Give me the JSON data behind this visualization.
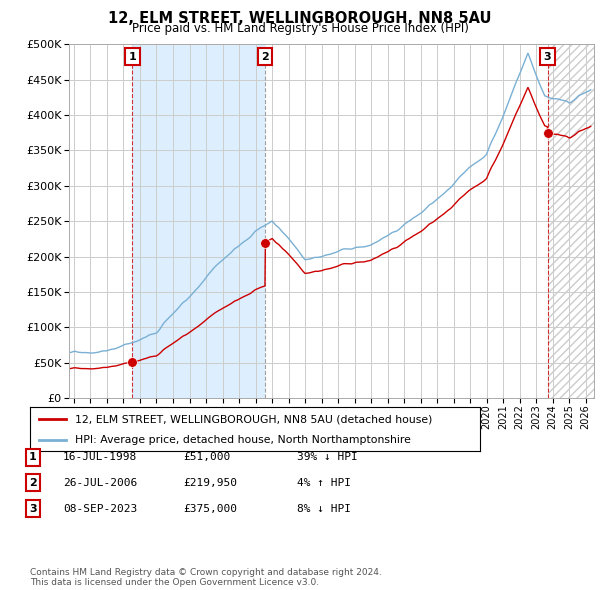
{
  "title": "12, ELM STREET, WELLINGBOROUGH, NN8 5AU",
  "subtitle": "Price paid vs. HM Land Registry's House Price Index (HPI)",
  "hpi_label": "HPI: Average price, detached house, North Northamptonshire",
  "price_label": "12, ELM STREET, WELLINGBOROUGH, NN8 5AU (detached house)",
  "sale_points": [
    {
      "date": 1998.54,
      "price": 51000,
      "label": "1"
    },
    {
      "date": 2006.57,
      "price": 219950,
      "label": "2"
    },
    {
      "date": 2023.69,
      "price": 375000,
      "label": "3"
    }
  ],
  "transactions": [
    {
      "num": "1",
      "date": "16-JUL-1998",
      "price": "£51,000",
      "hpi": "39% ↓ HPI"
    },
    {
      "num": "2",
      "date": "26-JUL-2006",
      "price": "£219,950",
      "hpi": "4% ↑ HPI"
    },
    {
      "num": "3",
      "date": "08-SEP-2023",
      "price": "£375,000",
      "hpi": "8% ↓ HPI"
    }
  ],
  "footer": "Contains HM Land Registry data © Crown copyright and database right 2024.\nThis data is licensed under the Open Government Licence v3.0.",
  "ylim": [
    0,
    500000
  ],
  "xlim_start": 1994.7,
  "xlim_end": 2026.5,
  "price_color": "#cc0000",
  "hpi_color": "#7ab0d4",
  "grid_color": "#cccccc",
  "bg_color": "#ffffff",
  "plot_bg_color": "#ffffff",
  "shade_color": "#ddeeff",
  "hatch_color": "#cccccc"
}
